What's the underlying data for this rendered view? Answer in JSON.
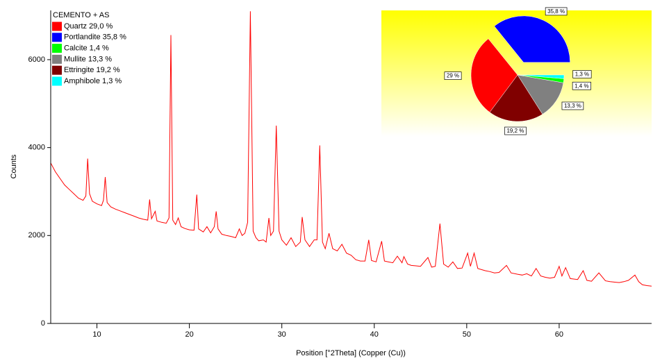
{
  "chart_data": [
    {
      "type": "line",
      "xlabel": "Position [°2Theta] (Copper (Cu))",
      "ylabel": "Counts",
      "color": "#ff0000",
      "xlim": [
        5,
        70
      ],
      "ylim": [
        0,
        7120
      ],
      "xticks": [
        10,
        20,
        30,
        40,
        50,
        60
      ],
      "yticks": [
        0,
        2000,
        4000,
        6000
      ],
      "x": [
        5.0,
        5.5,
        6.0,
        6.5,
        7.0,
        7.5,
        8.0,
        8.5,
        8.8,
        9.0,
        9.2,
        9.5,
        10.0,
        10.5,
        10.7,
        10.9,
        11.1,
        11.5,
        12.0,
        12.5,
        13.0,
        13.5,
        14.0,
        14.5,
        15.0,
        15.5,
        15.7,
        15.9,
        16.3,
        16.5,
        17.0,
        17.5,
        17.8,
        18.0,
        18.2,
        18.5,
        18.8,
        19.1,
        19.5,
        20.0,
        20.5,
        20.8,
        21.0,
        21.5,
        21.9,
        22.3,
        22.7,
        22.9,
        23.1,
        23.5,
        24.0,
        24.5,
        25.0,
        25.4,
        25.7,
        26.0,
        26.3,
        26.6,
        26.9,
        27.2,
        27.5,
        28.0,
        28.3,
        28.6,
        28.8,
        29.1,
        29.4,
        29.7,
        30.0,
        30.5,
        31.0,
        31.5,
        32.0,
        32.2,
        32.5,
        33.0,
        33.5,
        33.8,
        34.1,
        34.4,
        34.7,
        35.1,
        35.5,
        36.0,
        36.5,
        37.0,
        37.5,
        38.0,
        38.5,
        39.0,
        39.4,
        39.7,
        40.2,
        40.8,
        41.1,
        41.5,
        42.0,
        42.5,
        43.0,
        43.2,
        43.6,
        44.0,
        44.5,
        45.0,
        45.8,
        46.2,
        46.6,
        47.1,
        47.5,
        48.0,
        48.5,
        49.0,
        49.5,
        50.1,
        50.4,
        50.8,
        51.2,
        52.0,
        52.5,
        53.0,
        53.5,
        54.3,
        54.8,
        55.5,
        56.0,
        56.5,
        57.0,
        57.5,
        58.0,
        58.5,
        59.0,
        59.5,
        60.0,
        60.3,
        60.7,
        61.2,
        62.0,
        62.6,
        63.0,
        63.5,
        64.3,
        65.0,
        65.5,
        66.0,
        66.5,
        67.0,
        67.5,
        68.2,
        68.6,
        69.0,
        69.5,
        70.0
      ],
      "values": [
        3650,
        3450,
        3300,
        3150,
        3050,
        2950,
        2850,
        2800,
        2900,
        3750,
        2950,
        2780,
        2720,
        2680,
        2800,
        3330,
        2750,
        2650,
        2600,
        2560,
        2520,
        2480,
        2440,
        2400,
        2370,
        2350,
        2820,
        2380,
        2550,
        2330,
        2300,
        2280,
        2400,
        6560,
        2350,
        2250,
        2400,
        2200,
        2160,
        2130,
        2120,
        2930,
        2150,
        2080,
        2200,
        2060,
        2200,
        2550,
        2150,
        2030,
        2000,
        1980,
        1950,
        2150,
        2000,
        2050,
        2300,
        7100,
        2100,
        1950,
        1880,
        1900,
        1850,
        2400,
        2000,
        2100,
        4500,
        2100,
        1900,
        1780,
        1950,
        1750,
        1850,
        2420,
        1900,
        1750,
        1900,
        1900,
        4050,
        1850,
        1700,
        2050,
        1700,
        1650,
        1800,
        1600,
        1550,
        1450,
        1420,
        1420,
        1900,
        1430,
        1400,
        1870,
        1420,
        1400,
        1380,
        1530,
        1380,
        1520,
        1350,
        1320,
        1310,
        1300,
        1500,
        1280,
        1300,
        2270,
        1350,
        1280,
        1400,
        1250,
        1260,
        1600,
        1300,
        1600,
        1250,
        1200,
        1180,
        1150,
        1160,
        1320,
        1150,
        1120,
        1100,
        1130,
        1080,
        1250,
        1080,
        1050,
        1030,
        1050,
        1300,
        1080,
        1270,
        1020,
        1000,
        1200,
        980,
        960,
        1150,
        970,
        950,
        940,
        930,
        950,
        980,
        1100,
        950,
        880,
        860,
        850
      ]
    },
    {
      "type": "pie",
      "legend_title": "CEMENTO + AS",
      "categories": [
        "Quartz 29,0 %",
        "Portlandite 35,8 %",
        "Calcite 1,4 %",
        "Mullite 13,3 %",
        "Ettringite 19,2 %",
        "Amphibole 1,3 %"
      ],
      "values": [
        29.0,
        35.8,
        1.4,
        13.3,
        19.2,
        1.3
      ],
      "value_labels": [
        "29 %",
        "35,8 %",
        "1,4 %",
        "13,3 %",
        "19,2 %",
        "1,3 %"
      ],
      "colors": [
        "#ff0000",
        "#0000ff",
        "#00ff00",
        "#808080",
        "#800000",
        "#00ffff"
      ],
      "explode": [
        0,
        0.3,
        0,
        0,
        0,
        0
      ]
    }
  ]
}
